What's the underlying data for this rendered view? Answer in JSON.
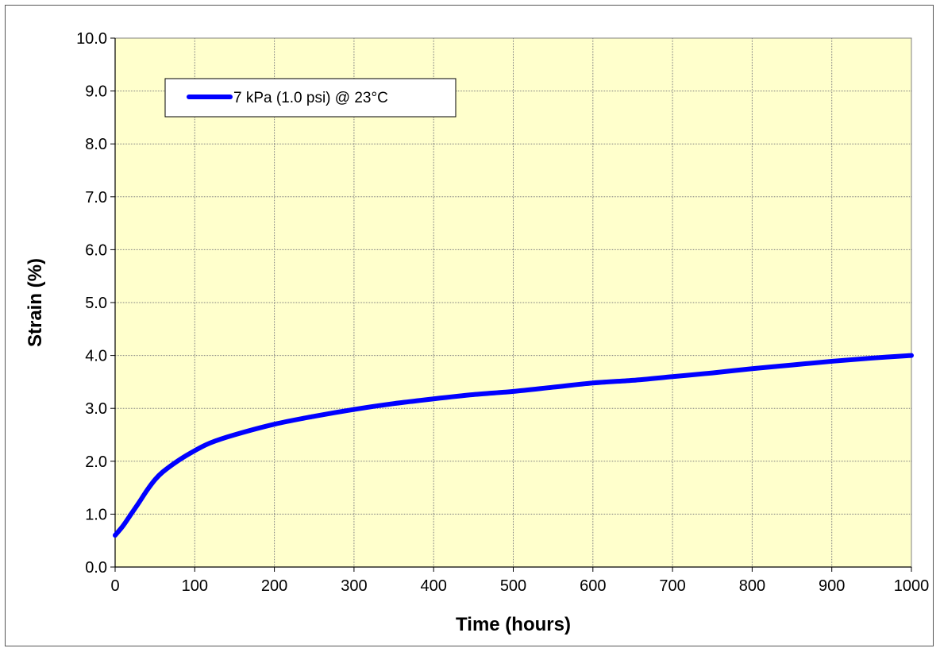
{
  "chart_data": {
    "type": "line",
    "xlabel": "Time (hours)",
    "ylabel": "Strain (%)",
    "xlim": [
      0,
      1000
    ],
    "ylim": [
      0,
      10
    ],
    "x_ticks": [
      "0",
      "100",
      "200",
      "300",
      "400",
      "500",
      "600",
      "700",
      "800",
      "900",
      "1000"
    ],
    "y_ticks": [
      "0.0",
      "1.0",
      "2.0",
      "3.0",
      "4.0",
      "5.0",
      "6.0",
      "7.0",
      "8.0",
      "9.0",
      "10.0"
    ],
    "grid": true,
    "legend_position": "top-left",
    "colors": {
      "plot_background": "#ffffcc",
      "series": "#0000ff",
      "grid": "#808080"
    },
    "series": [
      {
        "name": "7 kPa (1.0 psi) @ 23°C",
        "x": [
          0,
          10,
          20,
          30,
          40,
          50,
          60,
          80,
          100,
          120,
          150,
          200,
          250,
          300,
          350,
          400,
          450,
          500,
          550,
          600,
          650,
          700,
          750,
          800,
          850,
          900,
          950,
          1000
        ],
        "y": [
          0.6,
          0.78,
          1.0,
          1.22,
          1.45,
          1.65,
          1.8,
          2.02,
          2.2,
          2.35,
          2.5,
          2.7,
          2.85,
          2.98,
          3.09,
          3.18,
          3.26,
          3.32,
          3.4,
          3.48,
          3.53,
          3.6,
          3.67,
          3.75,
          3.82,
          3.89,
          3.95,
          4.0
        ]
      }
    ]
  }
}
